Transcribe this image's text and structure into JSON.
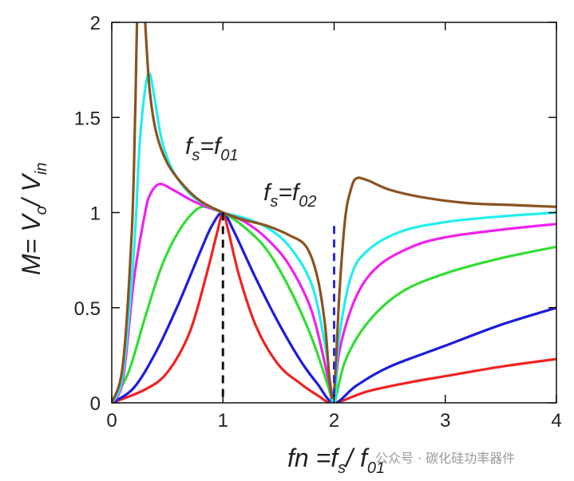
{
  "chart_data": {
    "type": "line",
    "xlabel": "fn =fs / f01",
    "ylabel": "M= Vo / Vin",
    "xlim": [
      0,
      4
    ],
    "ylim": [
      0,
      2
    ],
    "x_ticks": [
      "0",
      "1",
      "2",
      "3",
      "4"
    ],
    "y_ticks": [
      "0",
      "0.5",
      "1",
      "1.5",
      "2"
    ],
    "grid": false,
    "annotations": [
      {
        "text": "fs=f01",
        "x": 1.0,
        "y": 1.4
      },
      {
        "text": "fs=f02",
        "x": 2.0,
        "y": 1.03
      }
    ],
    "vlines": [
      {
        "x": 1.0,
        "y_max": 1.0,
        "style": "dashed",
        "color": "#111111"
      },
      {
        "x": 2.0,
        "y_max": 0.93,
        "style": "dashed",
        "color": "#2b2bdd"
      }
    ],
    "series": [
      {
        "color": "#ee2222",
        "points": [
          [
            0,
            0
          ],
          [
            0.3,
            0.07
          ],
          [
            0.5,
            0.16
          ],
          [
            0.7,
            0.37
          ],
          [
            0.85,
            0.67
          ],
          [
            0.95,
            0.9
          ],
          [
            1.0,
            1.0
          ],
          [
            1.05,
            0.9
          ],
          [
            1.15,
            0.66
          ],
          [
            1.3,
            0.4
          ],
          [
            1.5,
            0.2
          ],
          [
            1.7,
            0.1
          ],
          [
            1.85,
            0.04
          ],
          [
            2.0,
            0.0
          ],
          [
            2.3,
            0.06
          ],
          [
            2.7,
            0.11
          ],
          [
            3.0,
            0.14
          ],
          [
            3.5,
            0.19
          ],
          [
            4.0,
            0.23
          ]
        ]
      },
      {
        "color": "#1c1cdd",
        "points": [
          [
            0,
            0
          ],
          [
            0.2,
            0.08
          ],
          [
            0.4,
            0.27
          ],
          [
            0.6,
            0.52
          ],
          [
            0.8,
            0.8
          ],
          [
            0.9,
            0.93
          ],
          [
            1.0,
            1.0
          ],
          [
            1.1,
            0.9
          ],
          [
            1.3,
            0.65
          ],
          [
            1.5,
            0.42
          ],
          [
            1.7,
            0.22
          ],
          [
            1.85,
            0.1
          ],
          [
            2.0,
            0.0
          ],
          [
            2.2,
            0.09
          ],
          [
            2.5,
            0.19
          ],
          [
            3.0,
            0.3
          ],
          [
            3.5,
            0.41
          ],
          [
            4.0,
            0.5
          ]
        ]
      },
      {
        "color": "#33dd33",
        "points": [
          [
            0,
            0
          ],
          [
            0.15,
            0.16
          ],
          [
            0.3,
            0.45
          ],
          [
            0.45,
            0.72
          ],
          [
            0.6,
            0.9
          ],
          [
            0.75,
            1.01
          ],
          [
            0.85,
            1.03
          ],
          [
            1.0,
            1.0
          ],
          [
            1.2,
            0.92
          ],
          [
            1.4,
            0.8
          ],
          [
            1.6,
            0.6
          ],
          [
            1.8,
            0.34
          ],
          [
            1.95,
            0.08
          ],
          [
            2.0,
            0.0
          ],
          [
            2.1,
            0.22
          ],
          [
            2.3,
            0.42
          ],
          [
            2.6,
            0.58
          ],
          [
            3.0,
            0.68
          ],
          [
            3.5,
            0.76
          ],
          [
            4.0,
            0.82
          ]
        ]
      },
      {
        "color": "#ee22ee",
        "points": [
          [
            0,
            0
          ],
          [
            0.1,
            0.12
          ],
          [
            0.2,
            0.65
          ],
          [
            0.3,
            1.0
          ],
          [
            0.35,
            1.1
          ],
          [
            0.43,
            1.15
          ],
          [
            0.55,
            1.12
          ],
          [
            0.7,
            1.07
          ],
          [
            0.85,
            1.03
          ],
          [
            1.0,
            1.0
          ],
          [
            1.2,
            0.95
          ],
          [
            1.4,
            0.86
          ],
          [
            1.6,
            0.72
          ],
          [
            1.8,
            0.48
          ],
          [
            1.95,
            0.12
          ],
          [
            2.0,
            0.0
          ],
          [
            2.05,
            0.28
          ],
          [
            2.2,
            0.56
          ],
          [
            2.4,
            0.72
          ],
          [
            2.7,
            0.82
          ],
          [
            3.0,
            0.87
          ],
          [
            3.5,
            0.91
          ],
          [
            4.0,
            0.94
          ]
        ]
      },
      {
        "color": "#22eeee",
        "points": [
          [
            0,
            0
          ],
          [
            0.1,
            0.15
          ],
          [
            0.2,
            0.8
          ],
          [
            0.25,
            1.35
          ],
          [
            0.3,
            1.65
          ],
          [
            0.34,
            1.73
          ],
          [
            0.38,
            1.62
          ],
          [
            0.45,
            1.38
          ],
          [
            0.55,
            1.22
          ],
          [
            0.7,
            1.1
          ],
          [
            0.85,
            1.04
          ],
          [
            1.0,
            1.0
          ],
          [
            1.2,
            0.97
          ],
          [
            1.4,
            0.92
          ],
          [
            1.6,
            0.82
          ],
          [
            1.8,
            0.62
          ],
          [
            1.92,
            0.3
          ],
          [
            2.0,
            0.0
          ],
          [
            2.04,
            0.32
          ],
          [
            2.15,
            0.66
          ],
          [
            2.3,
            0.8
          ],
          [
            2.6,
            0.9
          ],
          [
            3.0,
            0.95
          ],
          [
            3.5,
            0.98
          ],
          [
            4.0,
            1.0
          ]
        ]
      },
      {
        "color": "#8b5220",
        "points": [
          [
            0,
            0
          ],
          [
            0.1,
            0.2
          ],
          [
            0.18,
            0.9
          ],
          [
            0.21,
            1.5
          ],
          [
            0.23,
            2.05
          ],
          [
            0.25,
            2.05
          ],
          [
            0.27,
            2.05
          ],
          [
            0.29,
            2.05
          ],
          [
            0.3,
            2.0
          ],
          [
            0.34,
            1.65
          ],
          [
            0.4,
            1.42
          ],
          [
            0.5,
            1.26
          ],
          [
            0.65,
            1.14
          ],
          [
            0.8,
            1.06
          ],
          [
            1.0,
            1.0
          ],
          [
            1.2,
            0.96
          ],
          [
            1.4,
            0.93
          ],
          [
            1.6,
            0.88
          ],
          [
            1.75,
            0.82
          ],
          [
            1.85,
            0.66
          ],
          [
            1.92,
            0.4
          ],
          [
            1.96,
            0.12
          ],
          [
            2.0,
            0.06
          ],
          [
            2.05,
            0.6
          ],
          [
            2.1,
            0.97
          ],
          [
            2.15,
            1.12
          ],
          [
            2.2,
            1.18
          ],
          [
            2.3,
            1.17
          ],
          [
            2.5,
            1.12
          ],
          [
            2.8,
            1.08
          ],
          [
            3.2,
            1.05
          ],
          [
            3.6,
            1.04
          ],
          [
            4.0,
            1.03
          ]
        ]
      }
    ]
  },
  "watermark": "公众号 · 碳化硅功率器件"
}
